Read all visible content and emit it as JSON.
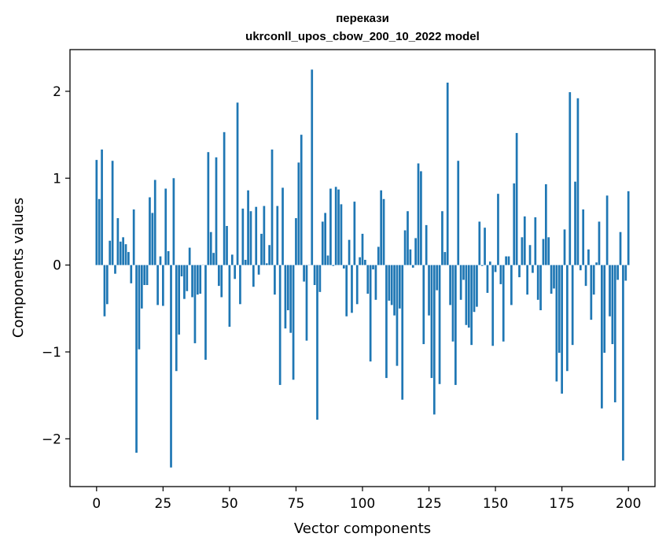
{
  "chart_data": {
    "type": "bar",
    "title": "перекази",
    "subtitle": "ukrconll_upos_cbow_200_10_2022 model",
    "xlabel": "Vector components",
    "ylabel": "Components values",
    "xlim": [
      -10,
      210
    ],
    "ylim": [
      -2.55,
      2.48
    ],
    "x_ticks": [
      0,
      25,
      50,
      75,
      100,
      125,
      150,
      175,
      200
    ],
    "y_ticks": [
      -2,
      -1,
      0,
      1,
      2
    ],
    "bar_color": "#1f77b4",
    "grid": false,
    "legend": "none",
    "values": [
      1.21,
      0.76,
      1.33,
      -0.59,
      -0.45,
      0.28,
      1.2,
      -0.1,
      0.54,
      0.27,
      0.32,
      0.24,
      0.15,
      -0.21,
      0.64,
      -2.16,
      -0.97,
      -0.5,
      -0.23,
      -0.23,
      0.78,
      0.6,
      0.98,
      -0.46,
      0.1,
      -0.47,
      0.88,
      0.16,
      -2.33,
      1.0,
      -1.22,
      -0.8,
      -0.13,
      -0.39,
      -0.3,
      0.2,
      -0.37,
      -0.9,
      -0.34,
      -0.33,
      0.0,
      -1.09,
      1.3,
      0.38,
      0.14,
      1.24,
      -0.24,
      -0.37,
      1.53,
      0.45,
      -0.71,
      0.12,
      -0.16,
      1.87,
      -0.45,
      0.65,
      0.06,
      0.86,
      0.62,
      -0.25,
      0.67,
      -0.11,
      0.36,
      0.68,
      0.02,
      0.23,
      1.33,
      -0.34,
      0.68,
      -1.38,
      0.89,
      -0.73,
      -0.52,
      -0.78,
      -1.32,
      0.54,
      1.18,
      1.5,
      -0.19,
      -0.87,
      0.0,
      2.25,
      -0.23,
      -1.78,
      -0.31,
      0.5,
      0.6,
      0.11,
      0.88,
      -0.01,
      0.9,
      0.87,
      0.7,
      -0.04,
      -0.59,
      0.29,
      -0.55,
      0.73,
      -0.45,
      0.09,
      0.36,
      0.06,
      -0.33,
      -1.11,
      -0.05,
      -0.4,
      0.21,
      0.86,
      0.76,
      -1.3,
      -0.41,
      -0.46,
      -0.58,
      -1.16,
      -0.5,
      -1.55,
      0.4,
      0.62,
      0.18,
      -0.03,
      0.31,
      1.17,
      1.08,
      -0.91,
      0.46,
      -0.58,
      -1.3,
      -1.72,
      -0.29,
      -1.37,
      0.62,
      0.15,
      2.1,
      -0.46,
      -0.88,
      -1.38,
      1.2,
      -0.4,
      -0.17,
      -0.69,
      -0.72,
      -0.92,
      -0.54,
      -0.48,
      0.5,
      -0.01,
      0.43,
      -0.32,
      0.04,
      -0.93,
      -0.08,
      0.82,
      -0.22,
      -0.88,
      0.1,
      0.1,
      -0.46,
      0.94,
      1.52,
      -0.14,
      0.32,
      0.56,
      -0.34,
      0.23,
      -0.09,
      0.55,
      -0.4,
      -0.52,
      0.3,
      0.93,
      0.32,
      -0.33,
      -0.27,
      -1.34,
      -1.01,
      -1.48,
      0.41,
      -1.22,
      1.99,
      -0.92,
      0.96,
      1.92,
      -0.06,
      0.64,
      -0.24,
      0.18,
      -0.63,
      -0.34,
      0.03,
      0.5,
      -1.65,
      -1.01,
      0.8,
      -0.59,
      -0.91,
      -1.58,
      -0.17,
      0.38,
      -2.25,
      -0.18,
      0.85
    ]
  }
}
